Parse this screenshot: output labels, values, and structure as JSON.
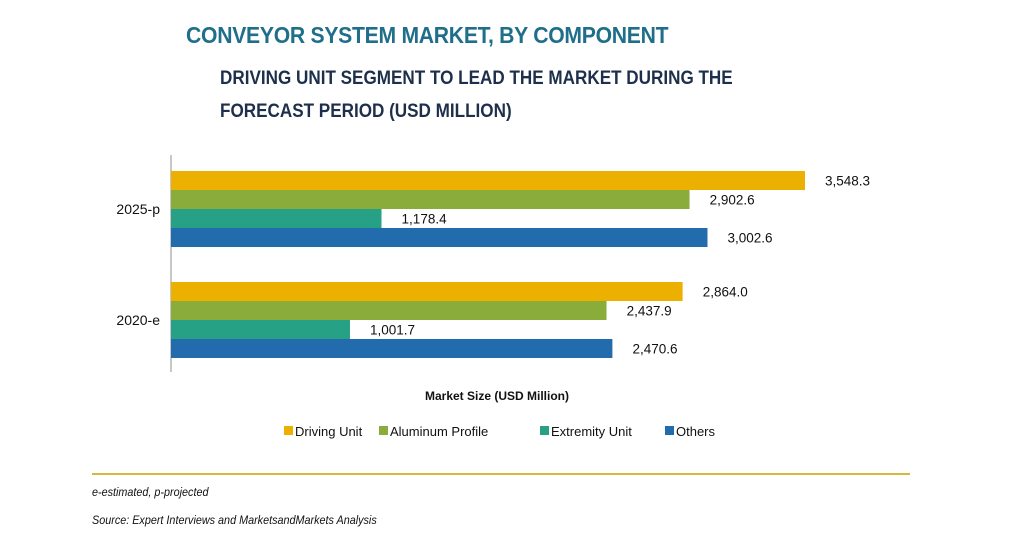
{
  "chart_data": {
    "type": "bar",
    "orientation": "horizontal",
    "title": "CONVEYOR SYSTEM MARKET, BY COMPONENT",
    "subtitle": "DRIVING UNIT SEGMENT TO LEAD THE MARKET DURING THE FORECAST PERIOD (USD MILLION)",
    "xlabel": "Market Size (USD Million)",
    "ylabel": "",
    "categories": [
      "2025-p",
      "2020-e"
    ],
    "series": [
      {
        "name": "Driving Unit",
        "color": "#ecb100",
        "values": [
          3548.3,
          2864.0
        ],
        "labels": [
          "3,548.3",
          "2,864.0"
        ]
      },
      {
        "name": "Aluminum Profile",
        "color": "#8aac3a",
        "values": [
          2902.6,
          2437.9
        ],
        "labels": [
          "2,902.6",
          "2,437.9"
        ]
      },
      {
        "name": "Extremity Unit",
        "color": "#27a185",
        "values": [
          1178.4,
          1001.7
        ],
        "labels": [
          "1,178.4",
          "1,001.7"
        ]
      },
      {
        "name": "Others",
        "color": "#226bac",
        "values": [
          3002.6,
          2470.6
        ],
        "labels": [
          "3,002.6",
          "2,470.6"
        ]
      }
    ],
    "xlim": [
      0,
      4000
    ],
    "grid": false,
    "legend_position": "bottom"
  },
  "footnotes": {
    "abbreviations": "e-estimated, p-projected",
    "source": "Source: Expert Interviews and MarketsandMarkets Analysis"
  },
  "colors": {
    "title": "#1f6f8b",
    "rule": "#c9a100"
  }
}
